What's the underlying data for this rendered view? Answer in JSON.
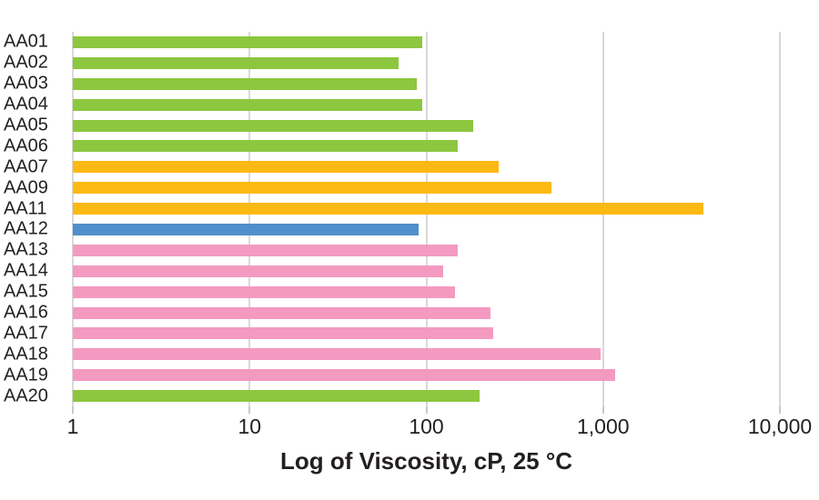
{
  "chart_data": {
    "type": "bar",
    "orientation": "horizontal",
    "x_scale": "log",
    "title": "",
    "xlabel": "Log of Viscosity, cP, 25 °C",
    "ylabel": "",
    "xlim": [
      1,
      10000
    ],
    "grid": true,
    "legend": false,
    "x_ticks": [
      {
        "label": "1",
        "value": 1
      },
      {
        "label": "10",
        "value": 10
      },
      {
        "label": "100",
        "value": 100
      },
      {
        "label": "1,000",
        "value": 1000
      },
      {
        "label": "10,000",
        "value": 10000
      }
    ],
    "categories": [
      "AA01",
      "AA02",
      "AA03",
      "AA04",
      "AA05",
      "AA06",
      "AA07",
      "AA09",
      "AA11",
      "AA12",
      "AA13",
      "AA14",
      "AA15",
      "AA16",
      "AA17",
      "AA18",
      "AA19",
      "AA20"
    ],
    "values": [
      95,
      70,
      88,
      95,
      185,
      150,
      255,
      510,
      3700,
      90,
      150,
      125,
      145,
      230,
      240,
      970,
      1170,
      200
    ],
    "bar_groups": [
      "green",
      "green",
      "green",
      "green",
      "green",
      "green",
      "orange",
      "orange",
      "orange",
      "blue",
      "pink",
      "pink",
      "pink",
      "pink",
      "pink",
      "pink",
      "pink",
      "green"
    ],
    "bar_colors_by_group": {
      "green": "#8dc63f",
      "orange": "#fdb913",
      "blue": "#4e8fcc",
      "pink": "#f49ac1"
    }
  },
  "colors": {
    "background": "#ffffff",
    "gridline": "#d9d9d9",
    "text": "#231f20"
  }
}
